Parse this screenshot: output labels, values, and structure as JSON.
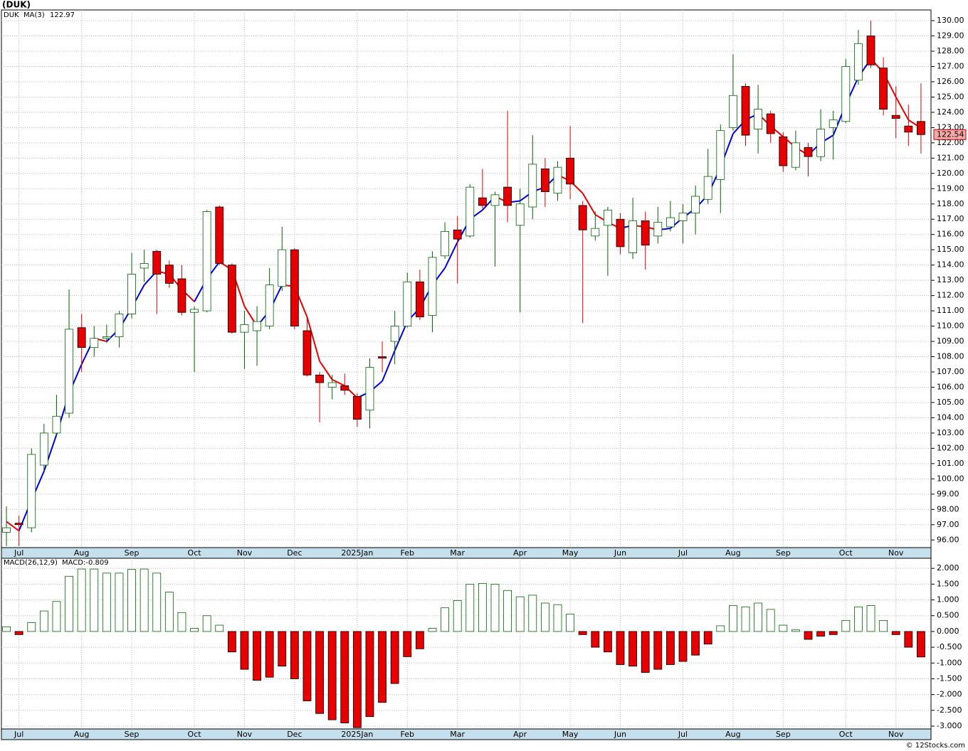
{
  "page_title": "(DUK)",
  "credit": "© 12Stocks.com",
  "chart_data": [
    {
      "type": "candlestick",
      "name": "DUK",
      "up_color": "#006400",
      "down_color": "#e60000",
      "ma_up_color": "#0000e0",
      "ma_down_color": "#e60000",
      "xlim": [
        -0.4,
        73.8
      ],
      "ylim": [
        95.5,
        130.7
      ],
      "grid": true,
      "xticks": [
        {
          "value": 1,
          "label": "Jul"
        },
        {
          "value": 6,
          "label": "Aug"
        },
        {
          "value": 10,
          "label": "Sep"
        },
        {
          "value": 15,
          "label": "Oct"
        },
        {
          "value": 19,
          "label": "Nov"
        },
        {
          "value": 23,
          "label": "Dec"
        },
        {
          "value": 28,
          "label": "2025Jan"
        },
        {
          "value": 32,
          "label": "Feb"
        },
        {
          "value": 36,
          "label": "Mar"
        },
        {
          "value": 41,
          "label": "Apr"
        },
        {
          "value": 45,
          "label": "May"
        },
        {
          "value": 49,
          "label": "Jun"
        },
        {
          "value": 54,
          "label": "Jul"
        },
        {
          "value": 58,
          "label": "Aug"
        },
        {
          "value": 62,
          "label": "Sep"
        },
        {
          "value": 67,
          "label": "Oct"
        },
        {
          "value": 71,
          "label": "Nov"
        }
      ],
      "yticks": [
        {
          "value": 96,
          "label": "96.00"
        },
        {
          "value": 97,
          "label": "97.00"
        },
        {
          "value": 98,
          "label": "98.00"
        },
        {
          "value": 99,
          "label": "99.00"
        },
        {
          "value": 100,
          "label": "100.00"
        },
        {
          "value": 101,
          "label": "101.00"
        },
        {
          "value": 102,
          "label": "102.00"
        },
        {
          "value": 103,
          "label": "103.00"
        },
        {
          "value": 104,
          "label": "104.00"
        },
        {
          "value": 105,
          "label": "105.00"
        },
        {
          "value": 106,
          "label": "106.00"
        },
        {
          "value": 107,
          "label": "107.00"
        },
        {
          "value": 108,
          "label": "108.00"
        },
        {
          "value": 109,
          "label": "109.00"
        },
        {
          "value": 110,
          "label": "110.00"
        },
        {
          "value": 111,
          "label": "111.00"
        },
        {
          "value": 112,
          "label": "112.00"
        },
        {
          "value": 113,
          "label": "113.00"
        },
        {
          "value": 114,
          "label": "114.00"
        },
        {
          "value": 115,
          "label": "115.00"
        },
        {
          "value": 116,
          "label": "116.00"
        },
        {
          "value": 117,
          "label": "117.00"
        },
        {
          "value": 118,
          "label": "118.00"
        },
        {
          "value": 119,
          "label": "119.00"
        },
        {
          "value": 120,
          "label": "120.00"
        },
        {
          "value": 121,
          "label": "121.00"
        },
        {
          "value": 122,
          "label": "122.00"
        },
        {
          "value": 123,
          "label": "123.00"
        },
        {
          "value": 124,
          "label": "124.00"
        },
        {
          "value": 125,
          "label": "125.00"
        },
        {
          "value": 126,
          "label": "126.00"
        },
        {
          "value": 127,
          "label": "127.00"
        },
        {
          "value": 128,
          "label": "128.00"
        },
        {
          "value": 129,
          "label": "129.00"
        },
        {
          "value": 130,
          "label": "130.00"
        }
      ],
      "open": [
        96.5,
        97.1,
        96.8,
        100.9,
        103,
        104.3,
        109.9,
        108.6,
        109.2,
        109.3,
        110.8,
        113.8,
        114.9,
        114,
        113.1,
        110.9,
        111,
        117.8,
        114,
        109.6,
        109.7,
        110,
        112.6,
        115,
        109.7,
        106.8,
        106,
        106.1,
        105.4,
        104.5,
        108,
        109,
        110,
        112.9,
        110.7,
        114.6,
        116.3,
        115.9,
        118.4,
        117.9,
        119.1,
        116.6,
        117.8,
        120.3,
        118.7,
        121,
        117.9,
        115.9,
        116.6,
        117,
        114.8,
        116.9,
        115.9,
        116.5,
        116.9,
        117.4,
        118.3,
        119.6,
        123,
        125.7,
        122.9,
        123.9,
        122.4,
        120.4,
        121.7,
        121.1,
        123,
        123.4,
        126.1,
        129,
        126.9,
        123.8,
        123.1,
        123.4
      ],
      "high": [
        98.2,
        97.6,
        102,
        103.6,
        105.5,
        112.4,
        110.8,
        110,
        110.1,
        111,
        114.8,
        115,
        115,
        114.3,
        114,
        111.3,
        117.6,
        117.9,
        114.1,
        111,
        111.3,
        113.8,
        116.5,
        115.1,
        110.5,
        107,
        106.8,
        106.9,
        105.6,
        107.9,
        109,
        111,
        113.5,
        113.7,
        114.9,
        116.8,
        117.2,
        119.3,
        120.3,
        118.8,
        124.1,
        119,
        122.5,
        121,
        120.8,
        123.1,
        118.2,
        117.5,
        117.8,
        117.4,
        118.4,
        117.5,
        117.8,
        118.2,
        118,
        119.2,
        121.6,
        123.2,
        127.8,
        125.9,
        125.8,
        124.1,
        122.7,
        122.8,
        122,
        124.2,
        124.1,
        127.5,
        129.4,
        130,
        127.6,
        125.7,
        124.5,
        125.9
      ],
      "low": [
        95.6,
        95.6,
        96.5,
        100.5,
        102.8,
        104,
        107,
        108,
        108.9,
        108.6,
        110.5,
        112.9,
        110.8,
        112.5,
        110.7,
        107,
        110.9,
        114,
        109.5,
        107.2,
        107.4,
        109.8,
        112.3,
        109.8,
        106.7,
        103.7,
        105.2,
        105.5,
        103.4,
        103.3,
        107,
        107.5,
        109.9,
        110.4,
        109.6,
        114.4,
        112.8,
        115.8,
        117.7,
        113.9,
        116.8,
        110.9,
        117,
        117.8,
        118.2,
        118.3,
        110.2,
        115.6,
        113.3,
        114.7,
        114.4,
        113.7,
        115.4,
        116.2,
        115.4,
        116,
        118,
        117.4,
        122.8,
        121.8,
        121.3,
        122,
        120.1,
        120.2,
        119.8,
        120.8,
        120.9,
        123.3,
        125.8,
        126.9,
        123.8,
        122.3,
        121.8,
        121.3
      ],
      "close": [
        96.8,
        97,
        101.6,
        103,
        104.1,
        109.8,
        108.6,
        109.2,
        109.3,
        110.8,
        113.4,
        114.1,
        113.4,
        112.8,
        110.9,
        111.1,
        117.5,
        114.1,
        109.6,
        110.1,
        110.3,
        112.7,
        115,
        110,
        106.8,
        106.3,
        106.3,
        105.8,
        103.9,
        107.3,
        107.9,
        110,
        112.9,
        110.6,
        114.5,
        116.2,
        115.7,
        119.1,
        117.9,
        118.6,
        117.9,
        118,
        120.6,
        118.8,
        120.4,
        119.3,
        116.3,
        116.4,
        117.6,
        115.2,
        116.9,
        115.3,
        116.8,
        117.1,
        117.4,
        118.5,
        119.8,
        122.8,
        125.1,
        122.5,
        124.2,
        122.6,
        120.5,
        122,
        121.1,
        122.9,
        123.5,
        127,
        128.5,
        127.1,
        124.2,
        123.6,
        122.7,
        122.54
      ],
      "last_price_label": "122.54",
      "ma": {
        "name": "MA(3)",
        "last_label": "122.97",
        "values": [
          97.2,
          96.6,
          98.6,
          100.5,
          102.9,
          105.6,
          107.5,
          109.2,
          109,
          109.8,
          111.2,
          112.7,
          113.6,
          113.4,
          112.4,
          111.6,
          113.1,
          114.2,
          113.7,
          111.3,
          110,
          111,
          112.7,
          112.6,
          110.6,
          107.7,
          106.5,
          106.1,
          105.3,
          105.7,
          106.4,
          108.4,
          110.3,
          111.2,
          112.7,
          113.8,
          115.5,
          117,
          117.6,
          118.5,
          118.1,
          118.2,
          118.8,
          119.1,
          119.9,
          119.5,
          118.7,
          117.3,
          116.8,
          116.4,
          116.6,
          116.5,
          116.3,
          116.4,
          117.1,
          117.7,
          118.6,
          120.4,
          122.6,
          123.5,
          123.9,
          123.1,
          122.4,
          121.7,
          121.2,
          122,
          122.5,
          124.5,
          126.3,
          127.5,
          126.6,
          125,
          123.5,
          122.97
        ]
      }
    },
    {
      "type": "bar",
      "title": "MACD(26,12,9)",
      "value_label": "MACD:-0.809",
      "pos_color": "#006400",
      "neg_color": "#e60000",
      "xlim": [
        -0.4,
        73.8
      ],
      "ylim": [
        -3.09,
        2.32
      ],
      "grid": true,
      "xticks": [
        {
          "value": 1,
          "label": "Jul"
        },
        {
          "value": 6,
          "label": "Aug"
        },
        {
          "value": 10,
          "label": "Sep"
        },
        {
          "value": 15,
          "label": "Oct"
        },
        {
          "value": 19,
          "label": "Nov"
        },
        {
          "value": 23,
          "label": "Dec"
        },
        {
          "value": 28,
          "label": "2025Jan"
        },
        {
          "value": 32,
          "label": "Feb"
        },
        {
          "value": 36,
          "label": "Mar"
        },
        {
          "value": 41,
          "label": "Apr"
        },
        {
          "value": 45,
          "label": "May"
        },
        {
          "value": 49,
          "label": "Jun"
        },
        {
          "value": 54,
          "label": "Jul"
        },
        {
          "value": 58,
          "label": "Aug"
        },
        {
          "value": 62,
          "label": "Sep"
        },
        {
          "value": 67,
          "label": "Oct"
        },
        {
          "value": 71,
          "label": "Nov"
        }
      ],
      "yticks": [
        {
          "value": 2,
          "label": "2.000"
        },
        {
          "value": 1.5,
          "label": "1.500"
        },
        {
          "value": 1,
          "label": "1.000"
        },
        {
          "value": 0.5,
          "label": "0.500"
        },
        {
          "value": 0,
          "label": "0.000"
        },
        {
          "value": -0.5,
          "label": "-0.500"
        },
        {
          "value": -1,
          "label": "-1.000"
        },
        {
          "value": -1.5,
          "label": "-1.500"
        },
        {
          "value": -2,
          "label": "-2.000"
        },
        {
          "value": -2.5,
          "label": "-2.500"
        },
        {
          "value": -3,
          "label": "-3.000"
        }
      ],
      "values": [
        0.15,
        -0.1,
        0.28,
        0.65,
        0.95,
        1.75,
        1.98,
        1.98,
        1.85,
        1.85,
        1.97,
        1.98,
        1.85,
        1.25,
        0.6,
        0.1,
        0.5,
        0.2,
        -0.65,
        -1.2,
        -1.55,
        -1.45,
        -1.1,
        -1.5,
        -2.2,
        -2.6,
        -2.8,
        -2.9,
        -3.05,
        -2.7,
        -2.25,
        -1.65,
        -0.8,
        -0.55,
        0.1,
        0.75,
        0.98,
        1.5,
        1.52,
        1.5,
        1.3,
        1.1,
        1.15,
        0.9,
        0.85,
        0.55,
        -0.1,
        -0.5,
        -0.65,
        -1.05,
        -1.1,
        -1.3,
        -1.2,
        -1.05,
        -0.95,
        -0.75,
        -0.4,
        0.18,
        0.82,
        0.78,
        0.9,
        0.7,
        0.2,
        0.05,
        -0.25,
        -0.15,
        -0.1,
        0.35,
        0.78,
        0.82,
        0.35,
        -0.1,
        -0.5,
        -0.809
      ]
    }
  ]
}
